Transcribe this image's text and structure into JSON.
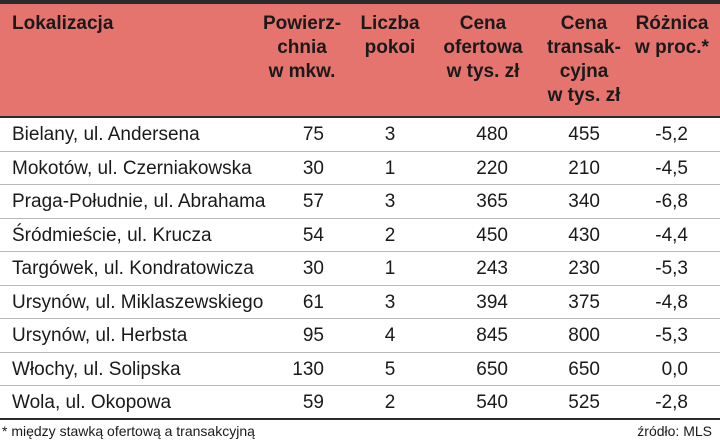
{
  "headers": {
    "location": "Lokalizacja",
    "area": "Powierz-\nchnia\nw mkw.",
    "rooms": "Liczba\npokoi",
    "offer_price": "Cena\nofertowa\nw tys. zł",
    "transaction_price": "Cena\ntransak-\ncyjna\nw tys. zł",
    "difference": "Różnica\nw proc.*"
  },
  "rows": [
    {
      "location": "Bielany, ul. Andersena",
      "area": "75",
      "rooms": "3",
      "offer": "480",
      "transaction": "455",
      "diff": "-5,2"
    },
    {
      "location": "Mokotów, ul. Czerniakowska",
      "area": "30",
      "rooms": "1",
      "offer": "220",
      "transaction": "210",
      "diff": "-4,5"
    },
    {
      "location": "Praga-Południe, ul. Abrahama",
      "area": "57",
      "rooms": "3",
      "offer": "365",
      "transaction": "340",
      "diff": "-6,8"
    },
    {
      "location": "Śródmieście, ul. Krucza",
      "area": "54",
      "rooms": "2",
      "offer": "450",
      "transaction": "430",
      "diff": "-4,4"
    },
    {
      "location": "Targówek, ul. Kondratowicza",
      "area": "30",
      "rooms": "1",
      "offer": "243",
      "transaction": "230",
      "diff": "-5,3"
    },
    {
      "location": "Ursynów, ul. Miklaszewskiego",
      "area": "61",
      "rooms": "3",
      "offer": "394",
      "transaction": "375",
      "diff": "-4,8"
    },
    {
      "location": "Ursynów, ul. Herbsta",
      "area": "95",
      "rooms": "4",
      "offer": "845",
      "transaction": "800",
      "diff": "-5,3"
    },
    {
      "location": "Włochy, ul. Solipska",
      "area": "130",
      "rooms": "5",
      "offer": "650",
      "transaction": "650",
      "diff": "0,0"
    },
    {
      "location": "Wola, ul. Okopowa",
      "area": "59",
      "rooms": "2",
      "offer": "540",
      "transaction": "525",
      "diff": "-2,8"
    }
  ],
  "footnote": "*  między stawką ofertową a transakcyjną",
  "source": "źródło: MLS",
  "colors": {
    "header_bg": "#e5736e",
    "rule": "#2b2b2b"
  }
}
